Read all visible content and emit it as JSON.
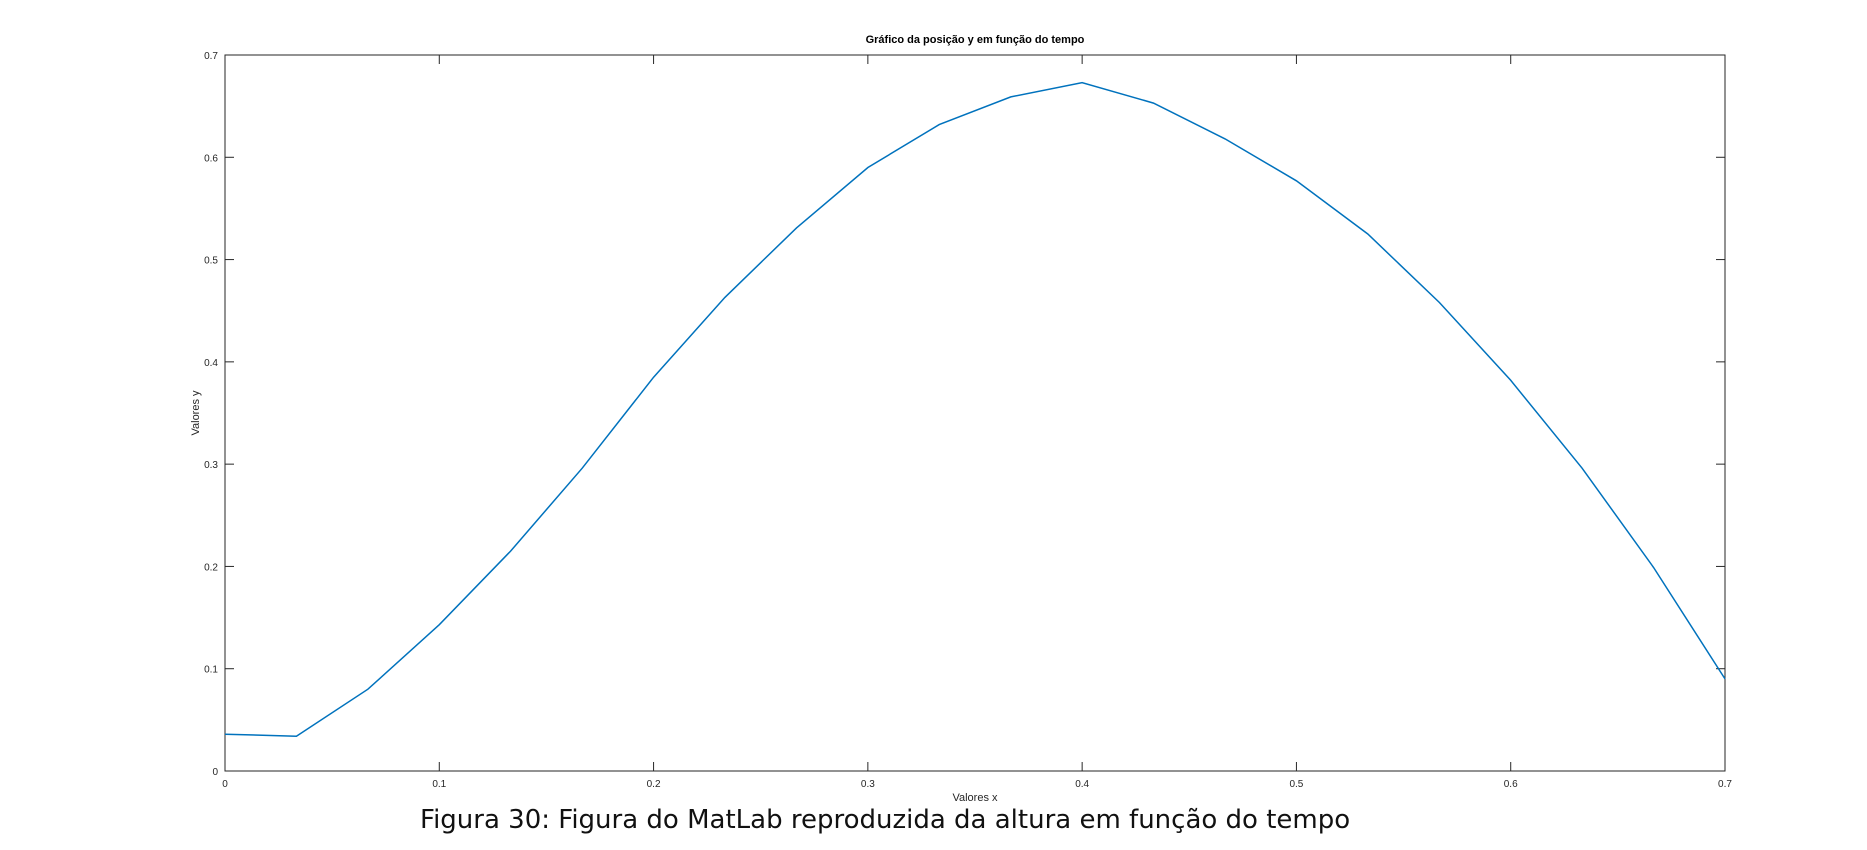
{
  "chart_data": {
    "type": "line",
    "title": "Gráfico da posição y em função do tempo",
    "xlabel": "Valores x",
    "ylabel": "Valores y",
    "xlim": [
      0,
      0.7
    ],
    "ylim": [
      0,
      0.7
    ],
    "xticks": [
      "0",
      "0.1",
      "0.2",
      "0.3",
      "0.4",
      "0.5",
      "0.6",
      "0.7"
    ],
    "yticks": [
      "0",
      "0.1",
      "0.2",
      "0.3",
      "0.4",
      "0.5",
      "0.6",
      "0.7"
    ],
    "grid": false,
    "series": [
      {
        "color": "#0072bd",
        "x": [
          0,
          0.0333,
          0.0667,
          0.1,
          0.1333,
          0.1667,
          0.2,
          0.2333,
          0.2667,
          0.3,
          0.3333,
          0.3667,
          0.4,
          0.4333,
          0.4667,
          0.5,
          0.5333,
          0.5667,
          0.6,
          0.6333,
          0.6667,
          0.7
        ],
        "y": [
          0.036,
          0.034,
          0.08,
          0.143,
          0.215,
          0.296,
          0.385,
          0.463,
          0.531,
          0.59,
          0.632,
          0.659,
          0.673,
          0.653,
          0.618,
          0.577,
          0.525,
          0.458,
          0.382,
          0.296,
          0.199,
          0.09
        ]
      }
    ]
  },
  "caption": "Figura 30: Figura do MatLab reproduzida da altura em função do tempo"
}
